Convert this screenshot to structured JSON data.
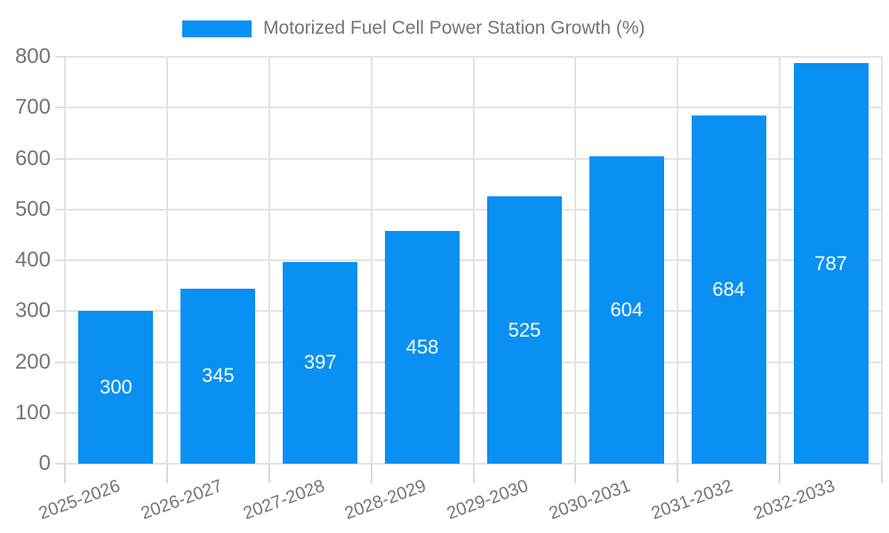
{
  "chart_data": {
    "type": "bar",
    "title": "Motorized Fuel Cell Power Station Growth (%)",
    "categories": [
      "2025-2026",
      "2026-2027",
      "2027-2028",
      "2028-2029",
      "2029-2030",
      "2030-2031",
      "2031-2032",
      "2032-2033"
    ],
    "values": [
      300,
      345,
      397,
      458,
      525,
      604,
      684,
      787
    ],
    "xlabel": "",
    "ylabel": "",
    "ylim": [
      0,
      800
    ],
    "yticks": [
      0,
      100,
      200,
      300,
      400,
      500,
      600,
      700,
      800
    ],
    "grid": true,
    "legend_position": "top",
    "bar_color": "#0a90f2",
    "value_label_color": "#ffffff",
    "axis_text_color": "#757575",
    "gridline_color": "#e3e3e3"
  }
}
